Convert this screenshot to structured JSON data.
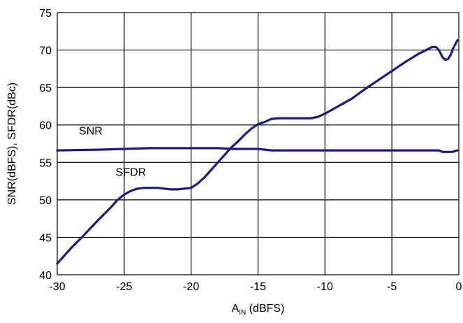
{
  "chart_data": {
    "type": "line",
    "title": "",
    "xlabel": {
      "main": "A",
      "sub": "IN",
      "rest": " (dBFS)"
    },
    "ylabel": "SNR(dBFS), SFDR(dBc)",
    "xlim": [
      -30,
      0
    ],
    "ylim": [
      40,
      75
    ],
    "x_ticks": [
      -30,
      -25,
      -20,
      -15,
      -10,
      -5,
      0
    ],
    "y_ticks": [
      40,
      45,
      50,
      55,
      60,
      65,
      70,
      75
    ],
    "x_tick_labels": [
      "-30",
      "-25",
      "-20",
      "-15",
      "-10",
      "-5",
      "0"
    ],
    "y_tick_labels": [
      "40",
      "45",
      "50",
      "55",
      "60",
      "65",
      "70",
      "75"
    ],
    "grid": true,
    "legend": "none",
    "line_color": "#1a1a80",
    "series": [
      {
        "name": "SNR",
        "x": [
          -30,
          -27,
          -25,
          -23,
          -21,
          -19,
          -18,
          -17,
          -15,
          -14,
          -10,
          -5,
          -1.5,
          -1.2,
          -0.5,
          -0.3,
          -0.1
        ],
        "y": [
          56.6,
          56.7,
          56.8,
          56.9,
          56.9,
          56.9,
          56.9,
          56.8,
          56.8,
          56.6,
          56.6,
          56.6,
          56.6,
          56.4,
          56.4,
          56.5,
          56.6
        ]
      },
      {
        "name": "SFDR",
        "x": [
          -30,
          -29,
          -28,
          -27,
          -26,
          -25.5,
          -25,
          -24.5,
          -24,
          -23.5,
          -23,
          -22.5,
          -22,
          -21.5,
          -21,
          -20.5,
          -20,
          -19.5,
          -19,
          -18.5,
          -18,
          -17.5,
          -17,
          -16.5,
          -16,
          -15.5,
          -15,
          -14.5,
          -14,
          -13.5,
          -13,
          -12,
          -11,
          -10.5,
          -10,
          -9,
          -8,
          -7,
          -6,
          -5,
          -4,
          -3,
          -2,
          -1.7,
          -1.5,
          -1.2,
          -1.0,
          -0.8,
          -0.6,
          -0.4,
          -0.2,
          -0.1
        ],
        "y": [
          41.5,
          43.5,
          45.3,
          47.2,
          49.0,
          50.0,
          50.7,
          51.2,
          51.5,
          51.6,
          51.6,
          51.6,
          51.5,
          51.4,
          51.4,
          51.5,
          51.6,
          52.2,
          53.0,
          54.0,
          55.0,
          56.0,
          57.0,
          57.8,
          58.7,
          59.5,
          60.1,
          60.4,
          60.8,
          60.9,
          60.9,
          60.9,
          60.9,
          61.1,
          61.5,
          62.5,
          63.5,
          64.8,
          66.0,
          67.2,
          68.4,
          69.5,
          70.4,
          70.4,
          70.0,
          69.0,
          68.7,
          68.8,
          69.4,
          70.3,
          71.0,
          71.3
        ]
      }
    ],
    "annotations": [
      {
        "text": "SNR",
        "x": -27.5,
        "y": 58.7
      },
      {
        "text": "SFDR",
        "x": -24.5,
        "y": 53.2
      }
    ]
  }
}
